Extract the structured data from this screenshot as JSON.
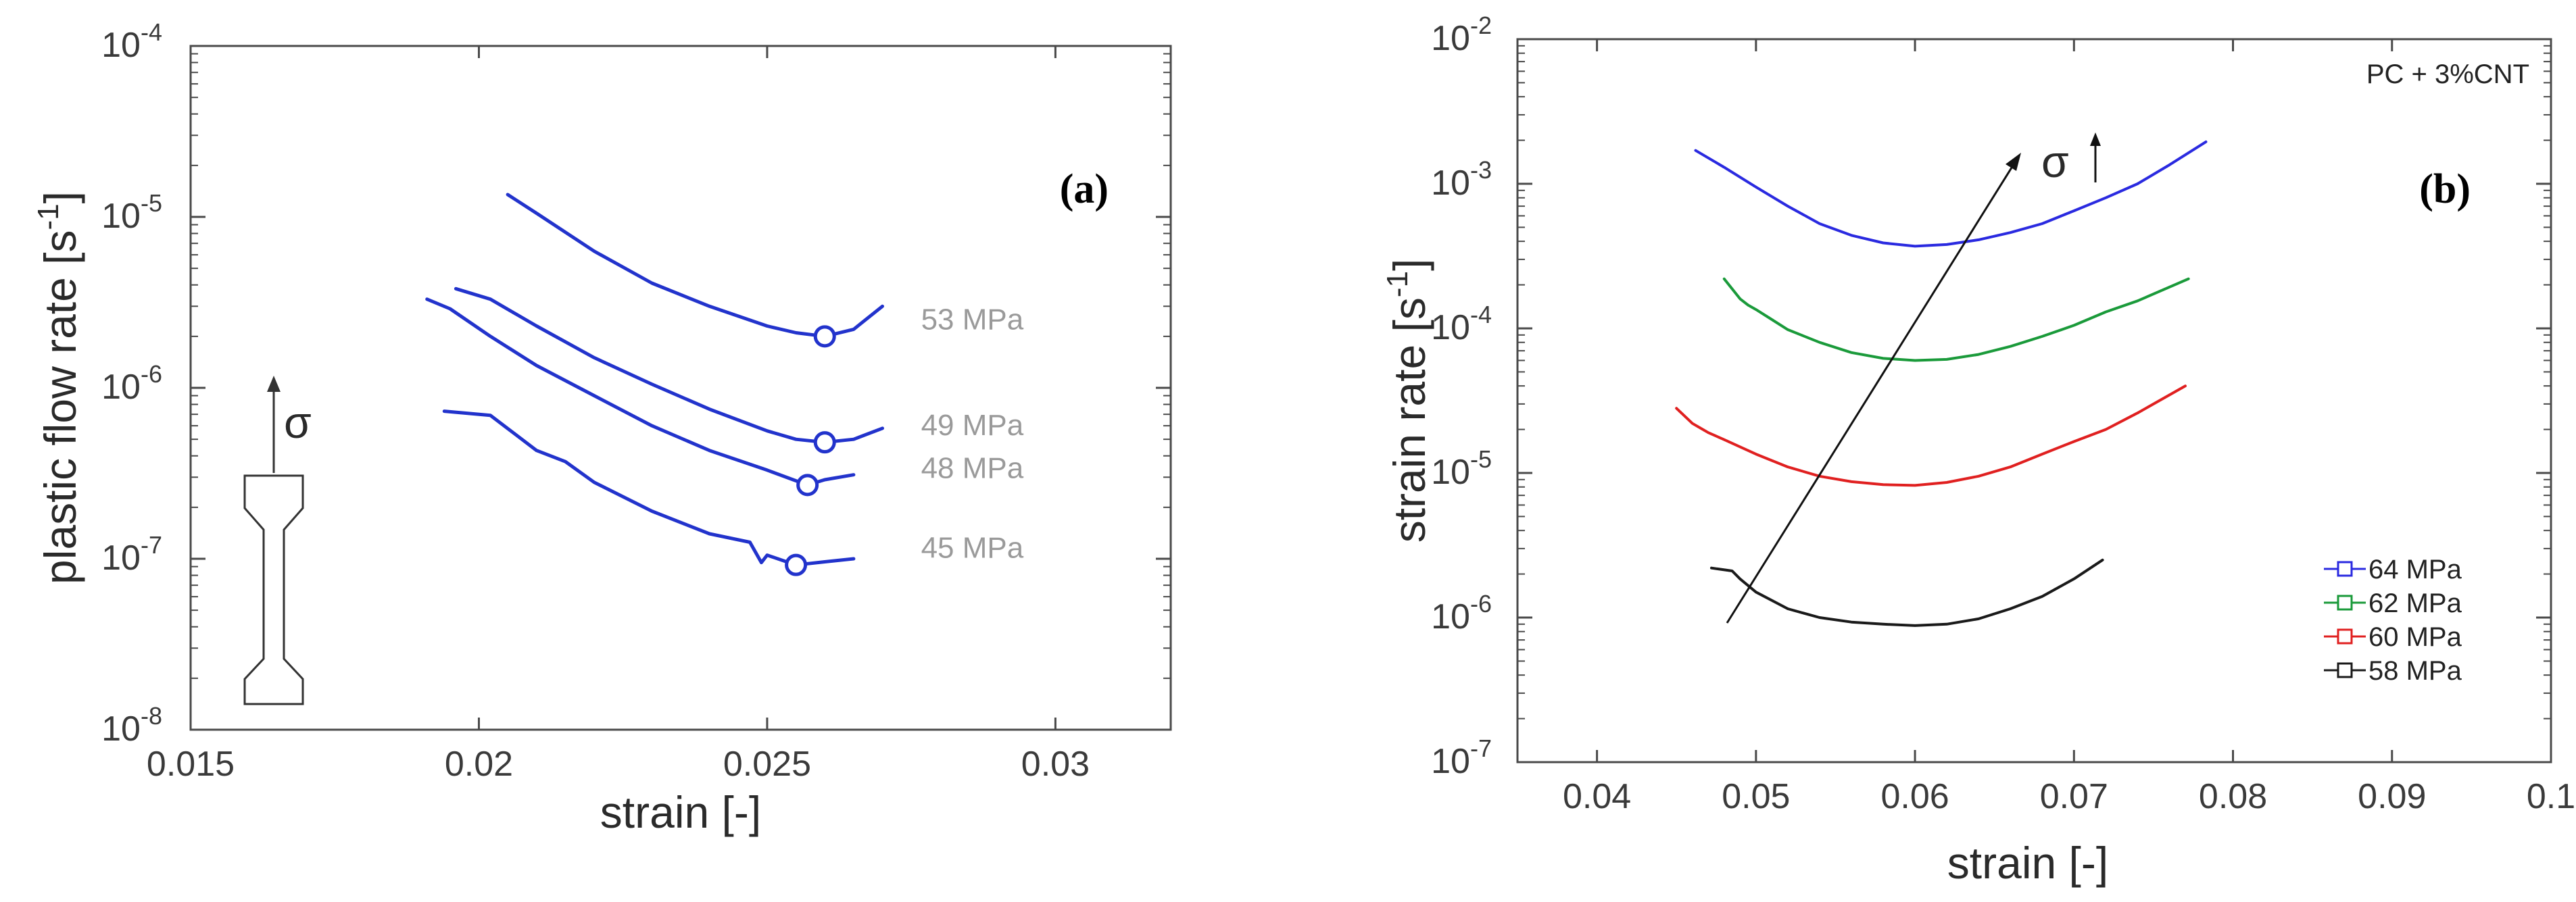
{
  "chart_data": [
    {
      "type": "line",
      "panel_label": "(a)",
      "xlabel": "strain [-]",
      "ylabel": "plastic flow rate [s",
      "ylabel_sup": "-1",
      "ylabel_end": "]",
      "xlim": [
        0.015,
        0.032
      ],
      "ylim_log10": [
        -8,
        -4
      ],
      "xticks": [
        0.015,
        0.02,
        0.025,
        0.03
      ],
      "xtick_labels": [
        "0.015",
        "0.02",
        "0.025",
        "0.03"
      ],
      "yticks_log10": [
        -8,
        -7,
        -6,
        -5,
        -4
      ],
      "ytick_base": "10",
      "ytick_exponents": [
        "-8",
        "-7",
        "-6",
        "-5",
        "-4"
      ],
      "color": "#2233cc",
      "sigma_label": "σ",
      "series": [
        {
          "name": "53 MPa",
          "label": "53 MPa",
          "x": [
            0.0205,
            0.021,
            0.022,
            0.023,
            0.024,
            0.025,
            0.0255,
            0.026,
            0.0265,
            0.027
          ],
          "y": [
            1.35e-05,
            1.05e-05,
            6.3e-06,
            4.1e-06,
            3e-06,
            2.3e-06,
            2.1e-06,
            2e-06,
            2.2e-06,
            3e-06
          ],
          "marker": {
            "x": 0.026,
            "y": 2e-06
          }
        },
        {
          "name": "49 MPa",
          "label": "49 MPa",
          "x": [
            0.0196,
            0.0202,
            0.021,
            0.022,
            0.023,
            0.024,
            0.025,
            0.0255,
            0.026,
            0.0265,
            0.027
          ],
          "y": [
            3.8e-06,
            3.3e-06,
            2.3e-06,
            1.5e-06,
            1.05e-06,
            7.5e-07,
            5.6e-07,
            5e-07,
            4.8e-07,
            5e-07,
            5.8e-07
          ],
          "marker": {
            "x": 0.026,
            "y": 4.8e-07
          }
        },
        {
          "name": "48 MPa",
          "label": "48 MPa",
          "x": [
            0.0191,
            0.0195,
            0.0202,
            0.021,
            0.022,
            0.023,
            0.024,
            0.025,
            0.0257,
            0.026,
            0.0265
          ],
          "y": [
            3.3e-06,
            2.9e-06,
            2e-06,
            1.35e-06,
            9e-07,
            6e-07,
            4.3e-07,
            3.3e-07,
            2.7e-07,
            2.9e-07,
            3.1e-07
          ],
          "marker": {
            "x": 0.0257,
            "y": 2.7e-07
          }
        },
        {
          "name": "45 MPa",
          "label": "45 MPa",
          "x": [
            0.0194,
            0.0202,
            0.021,
            0.0215,
            0.022,
            0.023,
            0.024,
            0.0247,
            0.0249,
            0.025,
            0.0255,
            0.026,
            0.0265
          ],
          "y": [
            7.3e-07,
            6.9e-07,
            4.3e-07,
            3.7e-07,
            2.8e-07,
            1.9e-07,
            1.4e-07,
            1.25e-07,
            9.5e-08,
            1.05e-07,
            9.2e-08,
            9.6e-08,
            1e-07
          ],
          "marker": {
            "x": 0.0255,
            "y": 9.2e-08
          }
        }
      ]
    },
    {
      "type": "line",
      "panel_label": "(b)",
      "annotation": "PC + 3%CNT",
      "xlabel": "strain [-]",
      "ylabel": "strain rate [s",
      "ylabel_sup": "-1",
      "ylabel_end": "]",
      "xlim": [
        0.035,
        0.1
      ],
      "ylim_log10": [
        -7,
        -2
      ],
      "xticks": [
        0.04,
        0.05,
        0.06,
        0.07,
        0.08,
        0.09,
        0.1
      ],
      "xtick_labels": [
        "0.04",
        "0.05",
        "0.06",
        "0.07",
        "0.08",
        "0.09",
        "0.1"
      ],
      "yticks_log10": [
        -7,
        -6,
        -5,
        -4,
        -3,
        -2
      ],
      "ytick_base": "10",
      "ytick_exponents": [
        "-7",
        "-6",
        "-5",
        "-4",
        "-3",
        "-2"
      ],
      "sigma_label": "σ",
      "legend_position": "bottom-right",
      "series": [
        {
          "name": "64 MPa",
          "color": "#2a2ae0",
          "x": [
            0.0462,
            0.048,
            0.05,
            0.052,
            0.054,
            0.056,
            0.058,
            0.06,
            0.062,
            0.064,
            0.066,
            0.068,
            0.07,
            0.072,
            0.074,
            0.076,
            0.0783
          ],
          "y": [
            0.0017,
            0.0013,
            0.00095,
            0.0007,
            0.00053,
            0.00044,
            0.00039,
            0.00037,
            0.00038,
            0.00041,
            0.00046,
            0.00053,
            0.00065,
            0.0008,
            0.001,
            0.00135,
            0.00195
          ]
        },
        {
          "name": "62 MPa",
          "color": "#1a9a3a",
          "x": [
            0.048,
            0.049,
            0.0495,
            0.05,
            0.051,
            0.052,
            0.054,
            0.056,
            0.058,
            0.06,
            0.062,
            0.064,
            0.066,
            0.068,
            0.07,
            0.072,
            0.074,
            0.0772
          ],
          "y": [
            0.00022,
            0.00016,
            0.000145,
            0.000135,
            0.000115,
            9.8e-05,
            8e-05,
            6.8e-05,
            6.2e-05,
            6e-05,
            6.1e-05,
            6.6e-05,
            7.5e-05,
            8.8e-05,
            0.000105,
            0.00013,
            0.000155,
            0.00022
          ]
        },
        {
          "name": "60 MPa",
          "color": "#e02020",
          "x": [
            0.045,
            0.046,
            0.047,
            0.048,
            0.05,
            0.052,
            0.054,
            0.056,
            0.058,
            0.06,
            0.062,
            0.064,
            0.066,
            0.068,
            0.07,
            0.072,
            0.074,
            0.077
          ],
          "y": [
            2.8e-05,
            2.2e-05,
            1.9e-05,
            1.7e-05,
            1.35e-05,
            1.1e-05,
            9.5e-06,
            8.7e-06,
            8.3e-06,
            8.2e-06,
            8.6e-06,
            9.5e-06,
            1.1e-05,
            1.35e-05,
            1.65e-05,
            2e-05,
            2.6e-05,
            4e-05
          ]
        },
        {
          "name": "58 MPa",
          "color": "#1a1a1a",
          "x": [
            0.0472,
            0.0485,
            0.049,
            0.05,
            0.052,
            0.054,
            0.056,
            0.058,
            0.06,
            0.062,
            0.064,
            0.066,
            0.068,
            0.07,
            0.0718
          ],
          "y": [
            2.2e-06,
            2.1e-06,
            1.85e-06,
            1.5e-06,
            1.15e-06,
            1e-06,
            9.3e-07,
            9e-07,
            8.8e-07,
            9e-07,
            9.8e-07,
            1.15e-06,
            1.4e-06,
            1.85e-06,
            2.5e-06
          ]
        }
      ]
    }
  ]
}
